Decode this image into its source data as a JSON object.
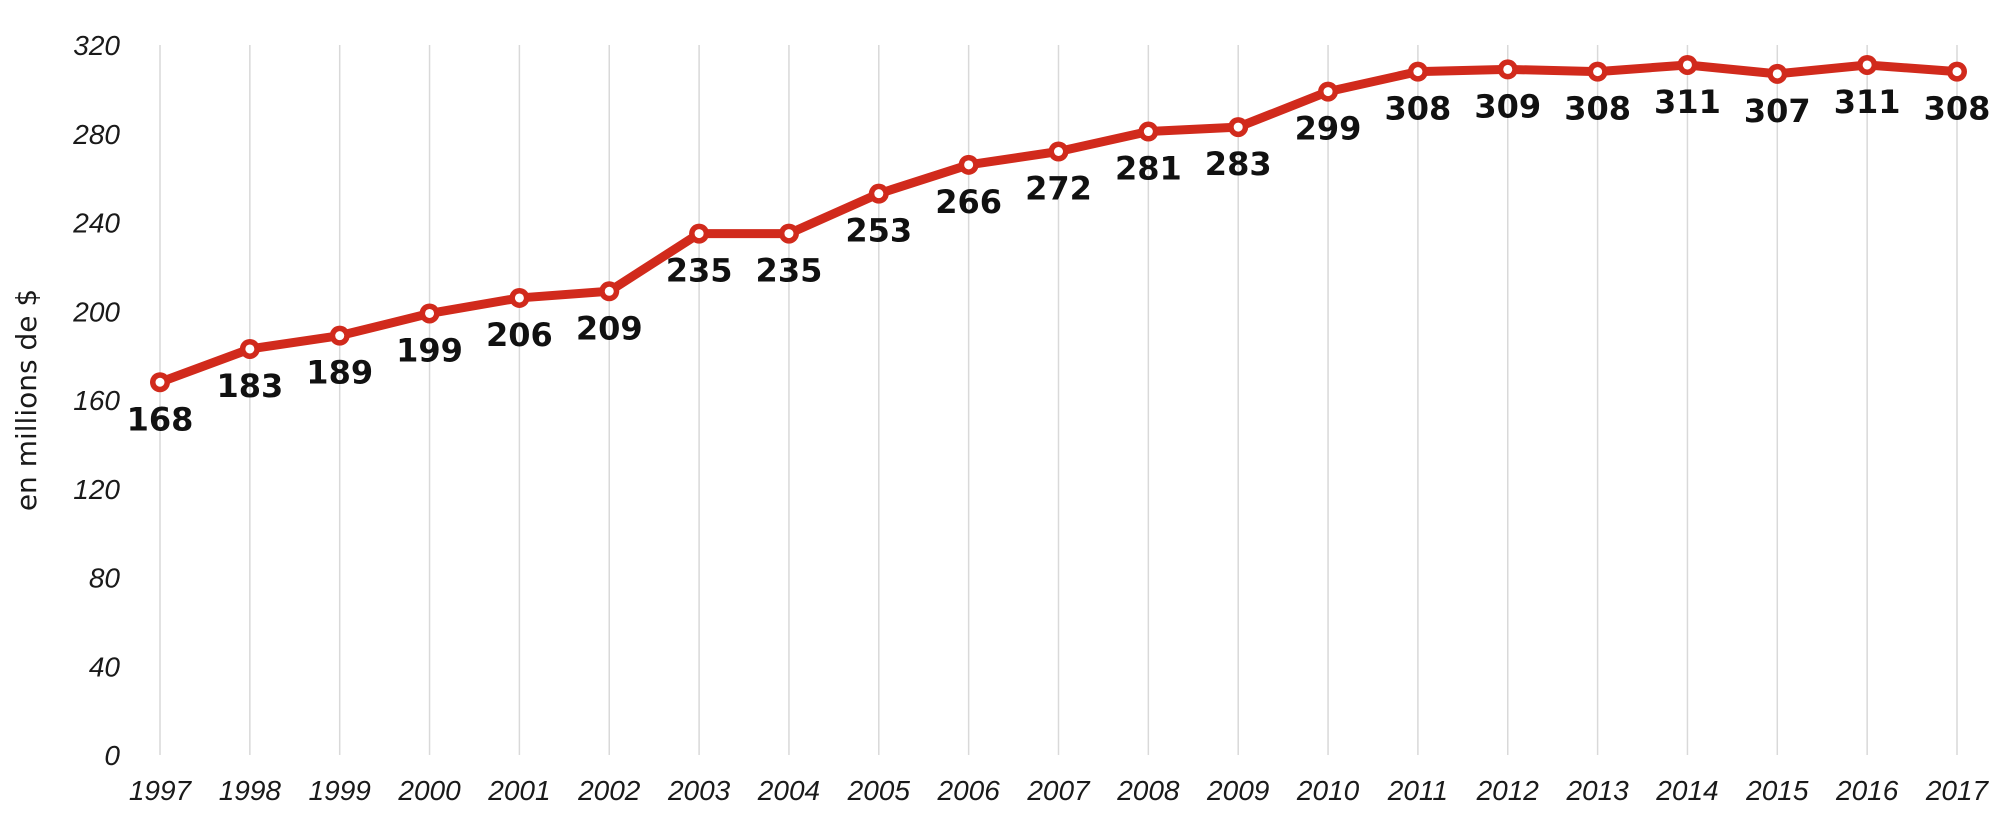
{
  "chart_data": {
    "type": "line",
    "title": "",
    "xlabel": "",
    "ylabel": "en millions de $",
    "ylim": [
      0,
      320
    ],
    "yticks": [
      0,
      40,
      80,
      120,
      160,
      200,
      240,
      280,
      320
    ],
    "grid": "vertical",
    "legend": "none",
    "categories": [
      "1997",
      "1998",
      "1999",
      "2000",
      "2001",
      "2002",
      "2003",
      "2004",
      "2005",
      "2006",
      "2007",
      "2008",
      "2009",
      "2010",
      "2011",
      "2012",
      "2013",
      "2014",
      "2015",
      "2016",
      "2017"
    ],
    "series": [
      {
        "values": [
          168,
          183,
          189,
          199,
          206,
          209,
          235,
          235,
          253,
          266,
          272,
          281,
          283,
          299,
          308,
          309,
          308,
          311,
          307,
          311,
          308
        ],
        "color": "#d12a1c",
        "marker": "circle-white-center"
      }
    ]
  }
}
